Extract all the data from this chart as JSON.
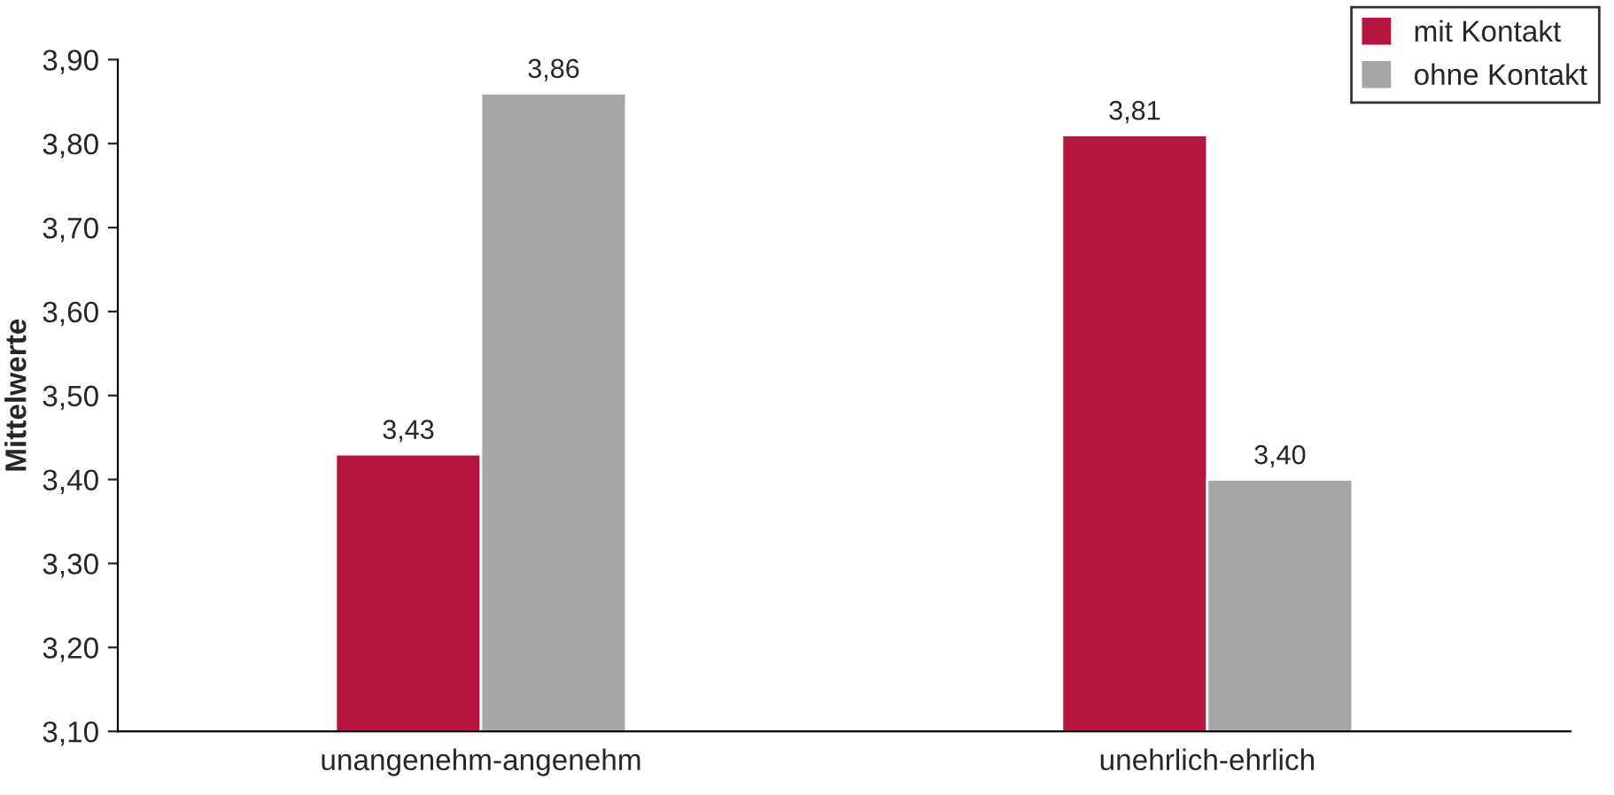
{
  "chart_data": {
    "type": "bar",
    "ylabel": "Mittelwerte",
    "categories": [
      "unangenehm-angenehm",
      "unehrlich-ehrlich"
    ],
    "series": [
      {
        "name": "mit Kontakt",
        "color": "#b5163f",
        "values": [
          3.43,
          3.81
        ],
        "value_labels": [
          "3,43",
          "3,81"
        ]
      },
      {
        "name": "ohne Kontakt",
        "color": "#a6a6a8",
        "values": [
          3.86,
          3.4
        ],
        "value_labels": [
          "3,86",
          "3,40"
        ]
      }
    ],
    "ylim": [
      3.1,
      3.9
    ],
    "yticks": [
      {
        "value": 3.1,
        "label": "3,10"
      },
      {
        "value": 3.2,
        "label": "3,20"
      },
      {
        "value": 3.3,
        "label": "3,30"
      },
      {
        "value": 3.4,
        "label": "3,40"
      },
      {
        "value": 3.5,
        "label": "3,50"
      },
      {
        "value": 3.6,
        "label": "3,60"
      },
      {
        "value": 3.7,
        "label": "3,70"
      },
      {
        "value": 3.8,
        "label": "3,80"
      },
      {
        "value": 3.9,
        "label": "3,90"
      }
    ],
    "grid": false,
    "legend": "top right"
  }
}
